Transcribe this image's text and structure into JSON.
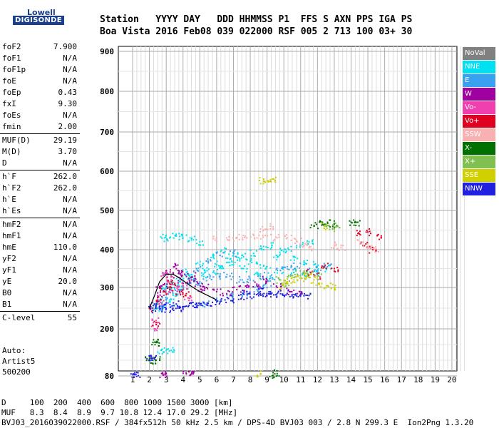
{
  "logo": {
    "top": "Lowell",
    "bottom": "DIGISONDE"
  },
  "header": {
    "row1": "Station   YYYY DAY   DDD HHMMSS P1  FFS S AXN PPS IGA PS",
    "row2": "Boa Vista 2016 Feb08 039 022000 RSF 005 2 713 100 03+ 30"
  },
  "params": [
    [
      {
        "label": "foF2",
        "value": "7.900"
      },
      {
        "label": "foF1",
        "value": "N/A"
      },
      {
        "label": "foF1p",
        "value": "N/A"
      },
      {
        "label": "foE",
        "value": "N/A"
      },
      {
        "label": "foEp",
        "value": "0.43"
      },
      {
        "label": "fxI",
        "value": "9.30"
      },
      {
        "label": "foEs",
        "value": "N/A"
      },
      {
        "label": "fmin",
        "value": "2.00"
      }
    ],
    [
      {
        "label": "MUF(D)",
        "value": "29.19"
      },
      {
        "label": "M(D)",
        "value": "3.70"
      },
      {
        "label": "D",
        "value": "N/A"
      }
    ],
    [
      {
        "label": "h`F",
        "value": "262.0"
      },
      {
        "label": "h`F2",
        "value": "262.0"
      },
      {
        "label": "h`E",
        "value": "N/A"
      },
      {
        "label": "h`Es",
        "value": "N/A"
      }
    ],
    [
      {
        "label": "hmF2",
        "value": "N/A"
      },
      {
        "label": "hmF1",
        "value": "N/A"
      },
      {
        "label": "hmE",
        "value": "110.0"
      },
      {
        "label": "yF2",
        "value": "N/A"
      },
      {
        "label": "yF1",
        "value": "N/A"
      },
      {
        "label": "yE",
        "value": "20.0"
      },
      {
        "label": "B0",
        "value": "N/A"
      },
      {
        "label": "B1",
        "value": "N/A"
      }
    ],
    [
      {
        "label": "C-level",
        "value": "55"
      }
    ]
  ],
  "auto": {
    "line1": "Auto:",
    "line2": "Artist5",
    "line3": "500200"
  },
  "legend": [
    {
      "label": "NoVal",
      "color": "#808080"
    },
    {
      "label": "NNE",
      "color": "#00e0f0"
    },
    {
      "label": "E",
      "color": "#3aa0f0"
    },
    {
      "label": "W",
      "color": "#a000a0"
    },
    {
      "label": "Vo-",
      "color": "#f040b0"
    },
    {
      "label": "Vo+",
      "color": "#e00020"
    },
    {
      "label": "SSW",
      "color": "#f8b0b0"
    },
    {
      "label": "X-",
      "color": "#007000"
    },
    {
      "label": "X+",
      "color": "#80c050"
    },
    {
      "label": "SSE",
      "color": "#d0d000"
    },
    {
      "label": "NNW",
      "color": "#2020e0"
    }
  ],
  "chart_data": {
    "type": "scatter",
    "title": "",
    "xlabel": "",
    "ylabel": "",
    "xlim": [
      1,
      20
    ],
    "ylim": [
      80,
      900
    ],
    "x_ticks": [
      "1",
      "2",
      "3",
      "4",
      "5",
      "6",
      "7",
      "8",
      "9",
      "10",
      "11",
      "12",
      "13",
      "14",
      "15",
      "16",
      "17",
      "18",
      "19",
      "20"
    ],
    "y_ticks": [
      "80",
      "200",
      "300",
      "400",
      "500",
      "600",
      "700",
      "800",
      "900"
    ],
    "profile": {
      "x": [
        2.0,
        2.3,
        2.6,
        3.0,
        3.4,
        3.8,
        4.2,
        4.6,
        5.0,
        5.5,
        6.0
      ],
      "y": [
        250,
        280,
        315,
        335,
        335,
        325,
        312,
        300,
        290,
        280,
        270
      ]
    },
    "series": [
      {
        "color": "#00e0f0",
        "pts": [
          [
            2.8,
            250
          ],
          [
            3.2,
            265
          ],
          [
            3.6,
            280
          ],
          [
            4.0,
            300
          ],
          [
            4.6,
            320
          ],
          [
            5.3,
            345
          ],
          [
            6.0,
            360
          ],
          [
            6.8,
            375
          ],
          [
            7.5,
            385
          ],
          [
            8.2,
            390
          ],
          [
            8.8,
            400
          ],
          [
            9.3,
            410
          ],
          [
            10.0,
            395
          ],
          [
            10.6,
            380
          ],
          [
            11.2,
            370
          ],
          [
            11.8,
            360
          ],
          [
            2.9,
            430
          ],
          [
            3.2,
            430
          ],
          [
            3.6,
            435
          ],
          [
            4.0,
            430
          ],
          [
            4.5,
            425
          ],
          [
            5.0,
            420
          ],
          [
            3.1,
            300
          ],
          [
            3.5,
            310
          ],
          [
            4.2,
            340
          ],
          [
            5.0,
            360
          ],
          [
            5.8,
            380
          ],
          [
            6.5,
            395
          ],
          [
            7.2,
            380
          ],
          [
            8.0,
            370
          ],
          [
            8.6,
            360
          ],
          [
            9.0,
            355
          ],
          [
            9.6,
            380
          ],
          [
            10.3,
            400
          ],
          [
            11.0,
            410
          ],
          [
            11.5,
            420
          ],
          [
            2.4,
            250
          ],
          [
            2.6,
            268
          ],
          [
            3.0,
            290
          ],
          [
            3.4,
            300
          ],
          [
            3.8,
            320
          ],
          [
            4.4,
            330
          ],
          [
            5.2,
            335
          ],
          [
            5.8,
            340
          ],
          [
            6.4,
            350
          ],
          [
            7.0,
            360
          ],
          [
            7.6,
            350
          ],
          [
            8.4,
            340
          ],
          [
            9.2,
            330
          ],
          [
            9.8,
            345
          ],
          [
            10.6,
            340
          ],
          [
            11.3,
            330
          ],
          [
            12.0,
            340
          ],
          [
            12.5,
            350
          ],
          [
            2.7,
            145
          ],
          [
            3.0,
            145
          ],
          [
            3.3,
            145
          ]
        ]
      },
      {
        "color": "#3aa0f0",
        "pts": [
          [
            2.7,
            255
          ],
          [
            3.0,
            270
          ],
          [
            3.4,
            285
          ],
          [
            3.9,
            295
          ],
          [
            4.4,
            305
          ],
          [
            5.0,
            315
          ],
          [
            5.6,
            325
          ],
          [
            6.2,
            330
          ],
          [
            6.8,
            330
          ],
          [
            7.4,
            320
          ],
          [
            8.0,
            320
          ],
          [
            8.6,
            330
          ],
          [
            9.2,
            325
          ],
          [
            9.8,
            345
          ],
          [
            10.2,
            355
          ],
          [
            10.8,
            355
          ],
          [
            11.4,
            345
          ],
          [
            12.0,
            345
          ],
          [
            12.6,
            355
          ],
          [
            5.3,
            260
          ],
          [
            6.0,
            270
          ],
          [
            6.8,
            280
          ],
          [
            7.6,
            285
          ],
          [
            8.4,
            295
          ],
          [
            9.0,
            300
          ],
          [
            4.8,
            350
          ],
          [
            5.4,
            370
          ],
          [
            6.2,
            385
          ],
          [
            7.0,
            390
          ]
        ]
      },
      {
        "color": "#a000a0",
        "pts": [
          [
            2.5,
            280
          ],
          [
            2.9,
            310
          ],
          [
            3.3,
            330
          ],
          [
            3.7,
            345
          ],
          [
            4.1,
            335
          ],
          [
            4.5,
            320
          ],
          [
            4.9,
            310
          ],
          [
            5.4,
            300
          ],
          [
            6.0,
            290
          ],
          [
            6.6,
            285
          ],
          [
            7.2,
            295
          ],
          [
            7.8,
            300
          ],
          [
            8.4,
            305
          ],
          [
            9.0,
            320
          ],
          [
            9.6,
            300
          ],
          [
            10.4,
            290
          ],
          [
            11.0,
            285
          ],
          [
            2.8,
            85
          ],
          [
            3.0,
            85
          ],
          [
            4.2,
            85
          ],
          [
            4.6,
            85
          ],
          [
            2.6,
            300
          ],
          [
            3.0,
            340
          ],
          [
            3.5,
            355
          ],
          [
            3.9,
            320
          ],
          [
            4.7,
            330
          ],
          [
            5.1,
            295
          ]
        ]
      },
      {
        "color": "#f040b0",
        "pts": [
          [
            2.6,
            260
          ],
          [
            3.1,
            285
          ],
          [
            3.5,
            300
          ],
          [
            4.0,
            305
          ],
          [
            4.3,
            275
          ],
          [
            2.3,
            200
          ],
          [
            2.4,
            220
          ],
          [
            2.9,
            335
          ],
          [
            3.3,
            320
          ],
          [
            3.8,
            290
          ]
        ]
      },
      {
        "color": "#e00020",
        "pts": [
          [
            2.5,
            270
          ],
          [
            2.9,
            290
          ],
          [
            3.3,
            300
          ],
          [
            3.8,
            290
          ],
          [
            4.2,
            285
          ],
          [
            2.2,
            250
          ],
          [
            2.4,
            215
          ],
          [
            3.2,
            310
          ],
          [
            11.6,
            340
          ],
          [
            12.0,
            330
          ],
          [
            12.4,
            355
          ],
          [
            13.0,
            350
          ],
          [
            14.8,
            410
          ],
          [
            14.5,
            440
          ],
          [
            15.0,
            445
          ],
          [
            15.3,
            400
          ],
          [
            15.8,
            430
          ]
        ]
      },
      {
        "color": "#f8b0b0",
        "pts": [
          [
            6.0,
            430
          ],
          [
            6.6,
            430
          ],
          [
            7.2,
            430
          ],
          [
            7.8,
            430
          ],
          [
            8.4,
            430
          ],
          [
            9.0,
            435
          ],
          [
            9.6,
            430
          ],
          [
            10.2,
            430
          ],
          [
            10.8,
            420
          ],
          [
            11.2,
            410
          ],
          [
            11.5,
            405
          ],
          [
            13.0,
            410
          ],
          [
            13.4,
            405
          ],
          [
            14.6,
            420
          ],
          [
            15.0,
            405
          ],
          [
            15.4,
            400
          ],
          [
            8.8,
            450
          ],
          [
            9.2,
            460
          ]
        ]
      },
      {
        "color": "#007000",
        "pts": [
          [
            2.0,
            120
          ],
          [
            2.2,
            120
          ],
          [
            2.4,
            120
          ],
          [
            2.4,
            165
          ],
          [
            2.5,
            165
          ],
          [
            9.3,
            80
          ],
          [
            9.6,
            86
          ],
          [
            12.3,
            470
          ],
          [
            12.6,
            470
          ],
          [
            13.0,
            465
          ],
          [
            14.0,
            470
          ],
          [
            14.4,
            470
          ],
          [
            11.8,
            460
          ]
        ]
      },
      {
        "color": "#80c050",
        "pts": [
          [
            10.4,
            330
          ],
          [
            10.8,
            335
          ],
          [
            11.2,
            340
          ],
          [
            11.6,
            335
          ],
          [
            12.0,
            330
          ],
          [
            12.5,
            460
          ],
          [
            12.9,
            455
          ],
          [
            13.2,
            460
          ],
          [
            9.8,
            320
          ],
          [
            10.1,
            310
          ]
        ]
      },
      {
        "color": "#d0d000",
        "pts": [
          [
            10.2,
            315
          ],
          [
            10.6,
            320
          ],
          [
            11.0,
            325
          ],
          [
            11.4,
            330
          ],
          [
            11.8,
            320
          ],
          [
            12.1,
            310
          ],
          [
            12.6,
            305
          ],
          [
            13.0,
            300
          ],
          [
            8.8,
            575
          ],
          [
            9.0,
            575
          ],
          [
            9.4,
            580
          ],
          [
            8.6,
            85
          ],
          [
            10.0,
            305
          ],
          [
            12.4,
            460
          ]
        ]
      },
      {
        "color": "#2020e0",
        "pts": [
          [
            2.2,
            245
          ],
          [
            2.6,
            248
          ],
          [
            3.0,
            248
          ],
          [
            3.4,
            250
          ],
          [
            3.8,
            250
          ],
          [
            4.2,
            255
          ],
          [
            4.6,
            255
          ],
          [
            5.0,
            258
          ],
          [
            5.5,
            262
          ],
          [
            6.0,
            265
          ],
          [
            6.5,
            270
          ],
          [
            7.0,
            272
          ],
          [
            7.5,
            275
          ],
          [
            8.0,
            277
          ],
          [
            8.5,
            280
          ],
          [
            9.0,
            280
          ],
          [
            9.4,
            282
          ],
          [
            9.8,
            285
          ],
          [
            10.2,
            285
          ],
          [
            10.6,
            283
          ],
          [
            11.0,
            282
          ],
          [
            11.4,
            281
          ],
          [
            2.3,
            260
          ],
          [
            2.8,
            255
          ],
          [
            3.6,
            260
          ],
          [
            4.8,
            262
          ],
          [
            7.8,
            290
          ],
          [
            8.6,
            290
          ],
          [
            9.2,
            290
          ],
          [
            1.1,
            84
          ],
          [
            1.2,
            84
          ],
          [
            2.1,
            125
          ],
          [
            2.2,
            125
          ]
        ]
      }
    ]
  },
  "footer": {
    "line1": "D     100  200  400  600  800 1000 1500 3000 [km]",
    "line2": "MUF   8.3  8.4  8.9  9.7 10.8 12.4 17.0 29.2 [MHz]",
    "line3": "BVJ03_2016039022000.RSF / 384fx512h 50 kHz 2.5 km / DPS-4D BVJ03 003 / 2.8 N 299.3 E  Ion2Png 1.3.20"
  }
}
